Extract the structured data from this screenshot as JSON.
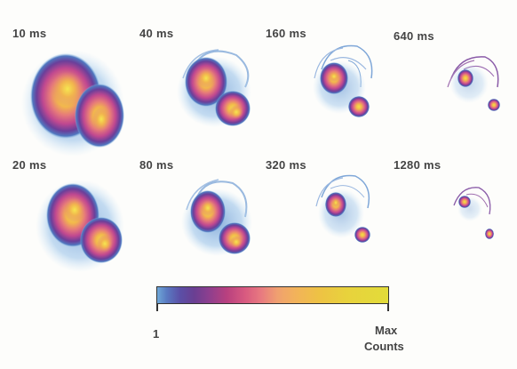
{
  "panels": [
    {
      "time": "10 ms"
    },
    {
      "time": "40 ms"
    },
    {
      "time": "160 ms"
    },
    {
      "time": "640 ms"
    },
    {
      "time": "20 ms"
    },
    {
      "time": "80 ms"
    },
    {
      "time": "320 ms"
    },
    {
      "time": "1280 ms"
    }
  ],
  "colorbar": {
    "min_label": "1",
    "max_label_line1": "Max",
    "max_label_line2": "Counts"
  }
}
